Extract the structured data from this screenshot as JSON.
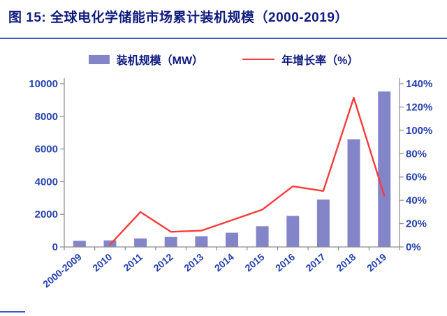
{
  "header": {
    "title": "图 15: 全球电化学储能市场累计装机规模（2000-2019）"
  },
  "legend": [
    {
      "label": "装机规模（MW）",
      "type": "bar",
      "color": "#8484c9"
    },
    {
      "label": "年增长率（%）",
      "type": "line",
      "color": "#f93b3b"
    }
  ],
  "chart_data": {
    "type": "bar+line",
    "title": "图 15: 全球电化学储能市场累计装机规模（2000-2019）",
    "categories": [
      "2000-2009",
      "2010",
      "2011",
      "2012",
      "2013",
      "2014",
      "2015",
      "2016",
      "2017",
      "2018",
      "2019"
    ],
    "series": [
      {
        "name": "装机规模（MW）",
        "type": "bar",
        "axis": "left",
        "color": "#8484c9",
        "values": [
          380,
          400,
          520,
          610,
          660,
          870,
          1270,
          1900,
          2900,
          6600,
          9520
        ]
      },
      {
        "name": "年增长率（%）",
        "type": "line",
        "axis": "right",
        "color": "#f93b3b",
        "values": [
          null,
          2,
          30,
          13,
          14,
          23,
          32,
          52,
          48,
          128,
          44
        ]
      }
    ],
    "left_axis": {
      "min": 0,
      "max": 10000,
      "step": 2000,
      "tick_labels": [
        "0",
        "2000",
        "4000",
        "6000",
        "8000",
        "10000"
      ]
    },
    "right_axis": {
      "min": 0,
      "max": 140,
      "step": 20,
      "suffix": "%",
      "tick_labels": [
        "0%",
        "20%",
        "40%",
        "60%",
        "80%",
        "100%",
        "120%",
        "140%"
      ]
    },
    "grid": false,
    "legend_position": "top",
    "styles": {
      "axis_text_color": "#2742ad",
      "axis_line_color": "#8a8a8a",
      "title_color": "#101c7e",
      "rule_color": "#3d55c5"
    }
  }
}
